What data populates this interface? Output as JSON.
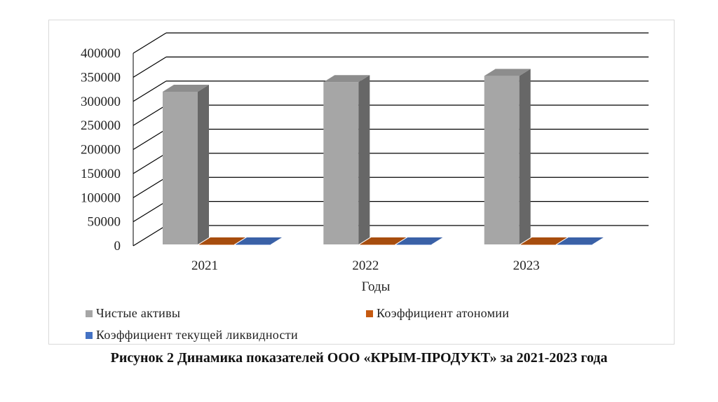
{
  "chart_data": {
    "type": "bar",
    "categories": [
      "2021",
      "2022",
      "2023"
    ],
    "series": [
      {
        "name": "Чистые активы",
        "values": [
          320000,
          340000,
          353000
        ],
        "color": "#a6a6a6"
      },
      {
        "name": "Коэффициент атономии",
        "values": [
          0.9,
          0.9,
          0.9
        ],
        "color": "#c55a11"
      },
      {
        "name": "Коэффициент текущей ликвидности",
        "values": [
          2.5,
          2.5,
          2.5
        ],
        "color": "#4472c4"
      }
    ],
    "xlabel": "Годы",
    "ylabel": "",
    "ylim": [
      0,
      400000
    ],
    "yticks": [
      "0",
      "50000",
      "100000",
      "150000",
      "200000",
      "250000",
      "300000",
      "350000",
      "400000"
    ],
    "grid": true,
    "legend_position": "bottom",
    "style": "3d-columns"
  },
  "caption": "Рисунок 2 Динамика показателей ООО «КРЫМ-ПРОДУКТ» за 2021-2023 года"
}
